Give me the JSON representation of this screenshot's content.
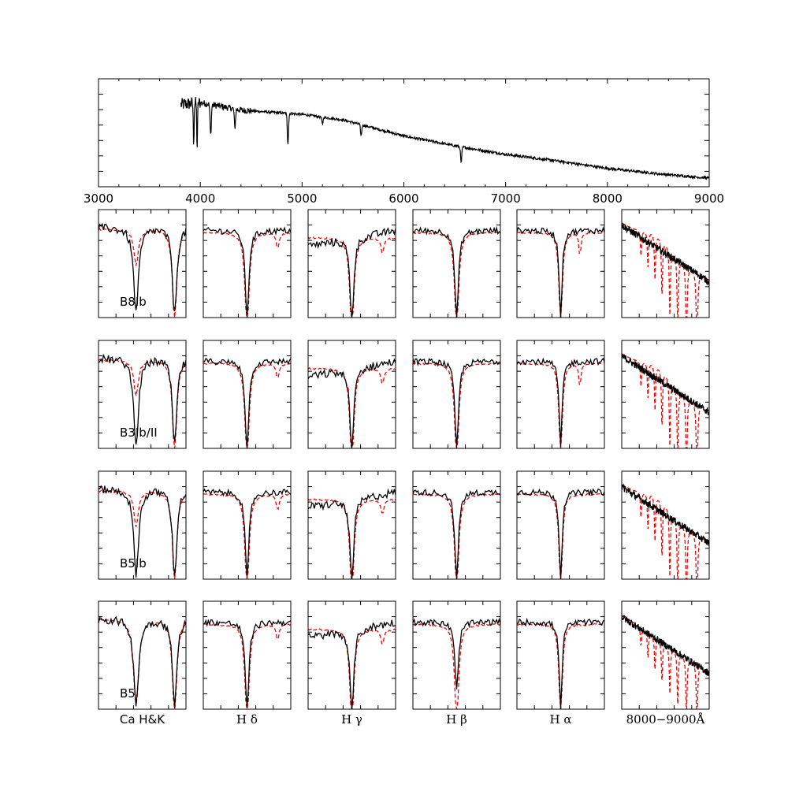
{
  "chart_data": [
    {
      "type": "line",
      "panel": "full-spectrum",
      "title": "",
      "xlabel": "",
      "ylabel": "",
      "xlim": [
        3000,
        9000
      ],
      "xticks": [
        "3000",
        "4000",
        "5000",
        "6000",
        "7000",
        "8000",
        "9000"
      ],
      "ytick_labels_shown": false,
      "series": [
        {
          "color": "#000000",
          "style": "solid",
          "x": [
            3810,
            3850,
            3890,
            3935,
            3969,
            4000,
            4102,
            4200,
            4340,
            4400,
            4600,
            4861,
            5000,
            5200,
            5400,
            5580,
            5800,
            6000,
            6200,
            6400,
            6563,
            6800,
            7000,
            7500,
            8000,
            8500,
            9000
          ],
          "y": [
            0.74,
            0.8,
            0.78,
            0.42,
            0.36,
            0.74,
            0.48,
            0.72,
            0.55,
            0.68,
            0.67,
            0.4,
            0.66,
            0.58,
            0.58,
            0.47,
            0.5,
            0.47,
            0.41,
            0.36,
            0.22,
            0.3,
            0.27,
            0.22,
            0.16,
            0.12,
            0.08
          ]
        }
      ]
    },
    {
      "type": "line-grid",
      "panel": "zoom-panels",
      "rows": [
        "B8Ib",
        "B3Ib/II",
        "B5Ib",
        "B5"
      ],
      "columns": [
        {
          "label": "Ca H&K",
          "math": false
        },
        {
          "label": "H δ",
          "math": true
        },
        {
          "label": "H γ",
          "math": true
        },
        {
          "label": "H β",
          "math": true
        },
        {
          "label": "H α",
          "math": true
        },
        {
          "label": "8000−9000Å",
          "math": true
        }
      ],
      "series": [
        {
          "name": "",
          "color": "#000000",
          "style": "solid"
        },
        {
          "name": "",
          "color": "#ff0000",
          "style": "dashed"
        }
      ],
      "tick_labels_shown": false
    }
  ]
}
